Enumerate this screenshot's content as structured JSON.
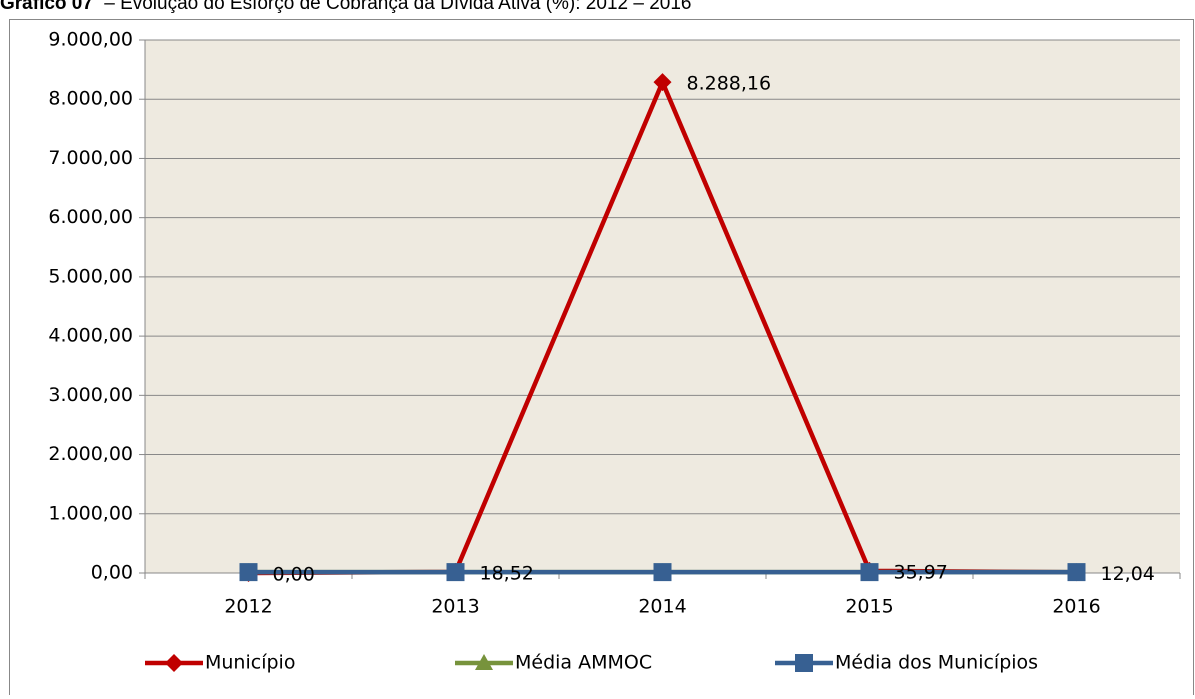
{
  "chart_data": {
    "type": "line",
    "title_label": "Gráfico 07",
    "title": "– Evolução do Esforço de Cobrança da Dívida Ativa (%): 2012 – 2016",
    "categories": [
      "2012",
      "2013",
      "2014",
      "2015",
      "2016"
    ],
    "series": [
      {
        "name": "Município",
        "color": "#c00000",
        "marker": "diamond",
        "values": [
          0,
          18.52,
          8288.16,
          35.97,
          12.04
        ],
        "value_labels": [
          "0,00",
          "18,52",
          "8.288,16",
          "35,97",
          "12,04"
        ]
      },
      {
        "name": "Média AMMOC",
        "color": "#77933c",
        "marker": "triangle",
        "values": [
          15,
          15,
          15,
          15,
          15
        ]
      },
      {
        "name": "Média dos Municípios",
        "color": "#376092",
        "marker": "square",
        "values": [
          15,
          15,
          15,
          15,
          15
        ]
      }
    ],
    "ylim": [
      0,
      9000
    ],
    "yticks": [
      {
        "value": 0,
        "label": "0,00"
      },
      {
        "value": 1000,
        "label": "1.000,00"
      },
      {
        "value": 2000,
        "label": "2.000,00"
      },
      {
        "value": 3000,
        "label": "3.000,00"
      },
      {
        "value": 4000,
        "label": "4.000,00"
      },
      {
        "value": 5000,
        "label": "5.000,00"
      },
      {
        "value": 6000,
        "label": "6.000,00"
      },
      {
        "value": 7000,
        "label": "7.000,00"
      },
      {
        "value": 8000,
        "label": "8.000,00"
      },
      {
        "value": 9000,
        "label": "9.000,00"
      }
    ],
    "grid": true,
    "legend": "bottom"
  }
}
